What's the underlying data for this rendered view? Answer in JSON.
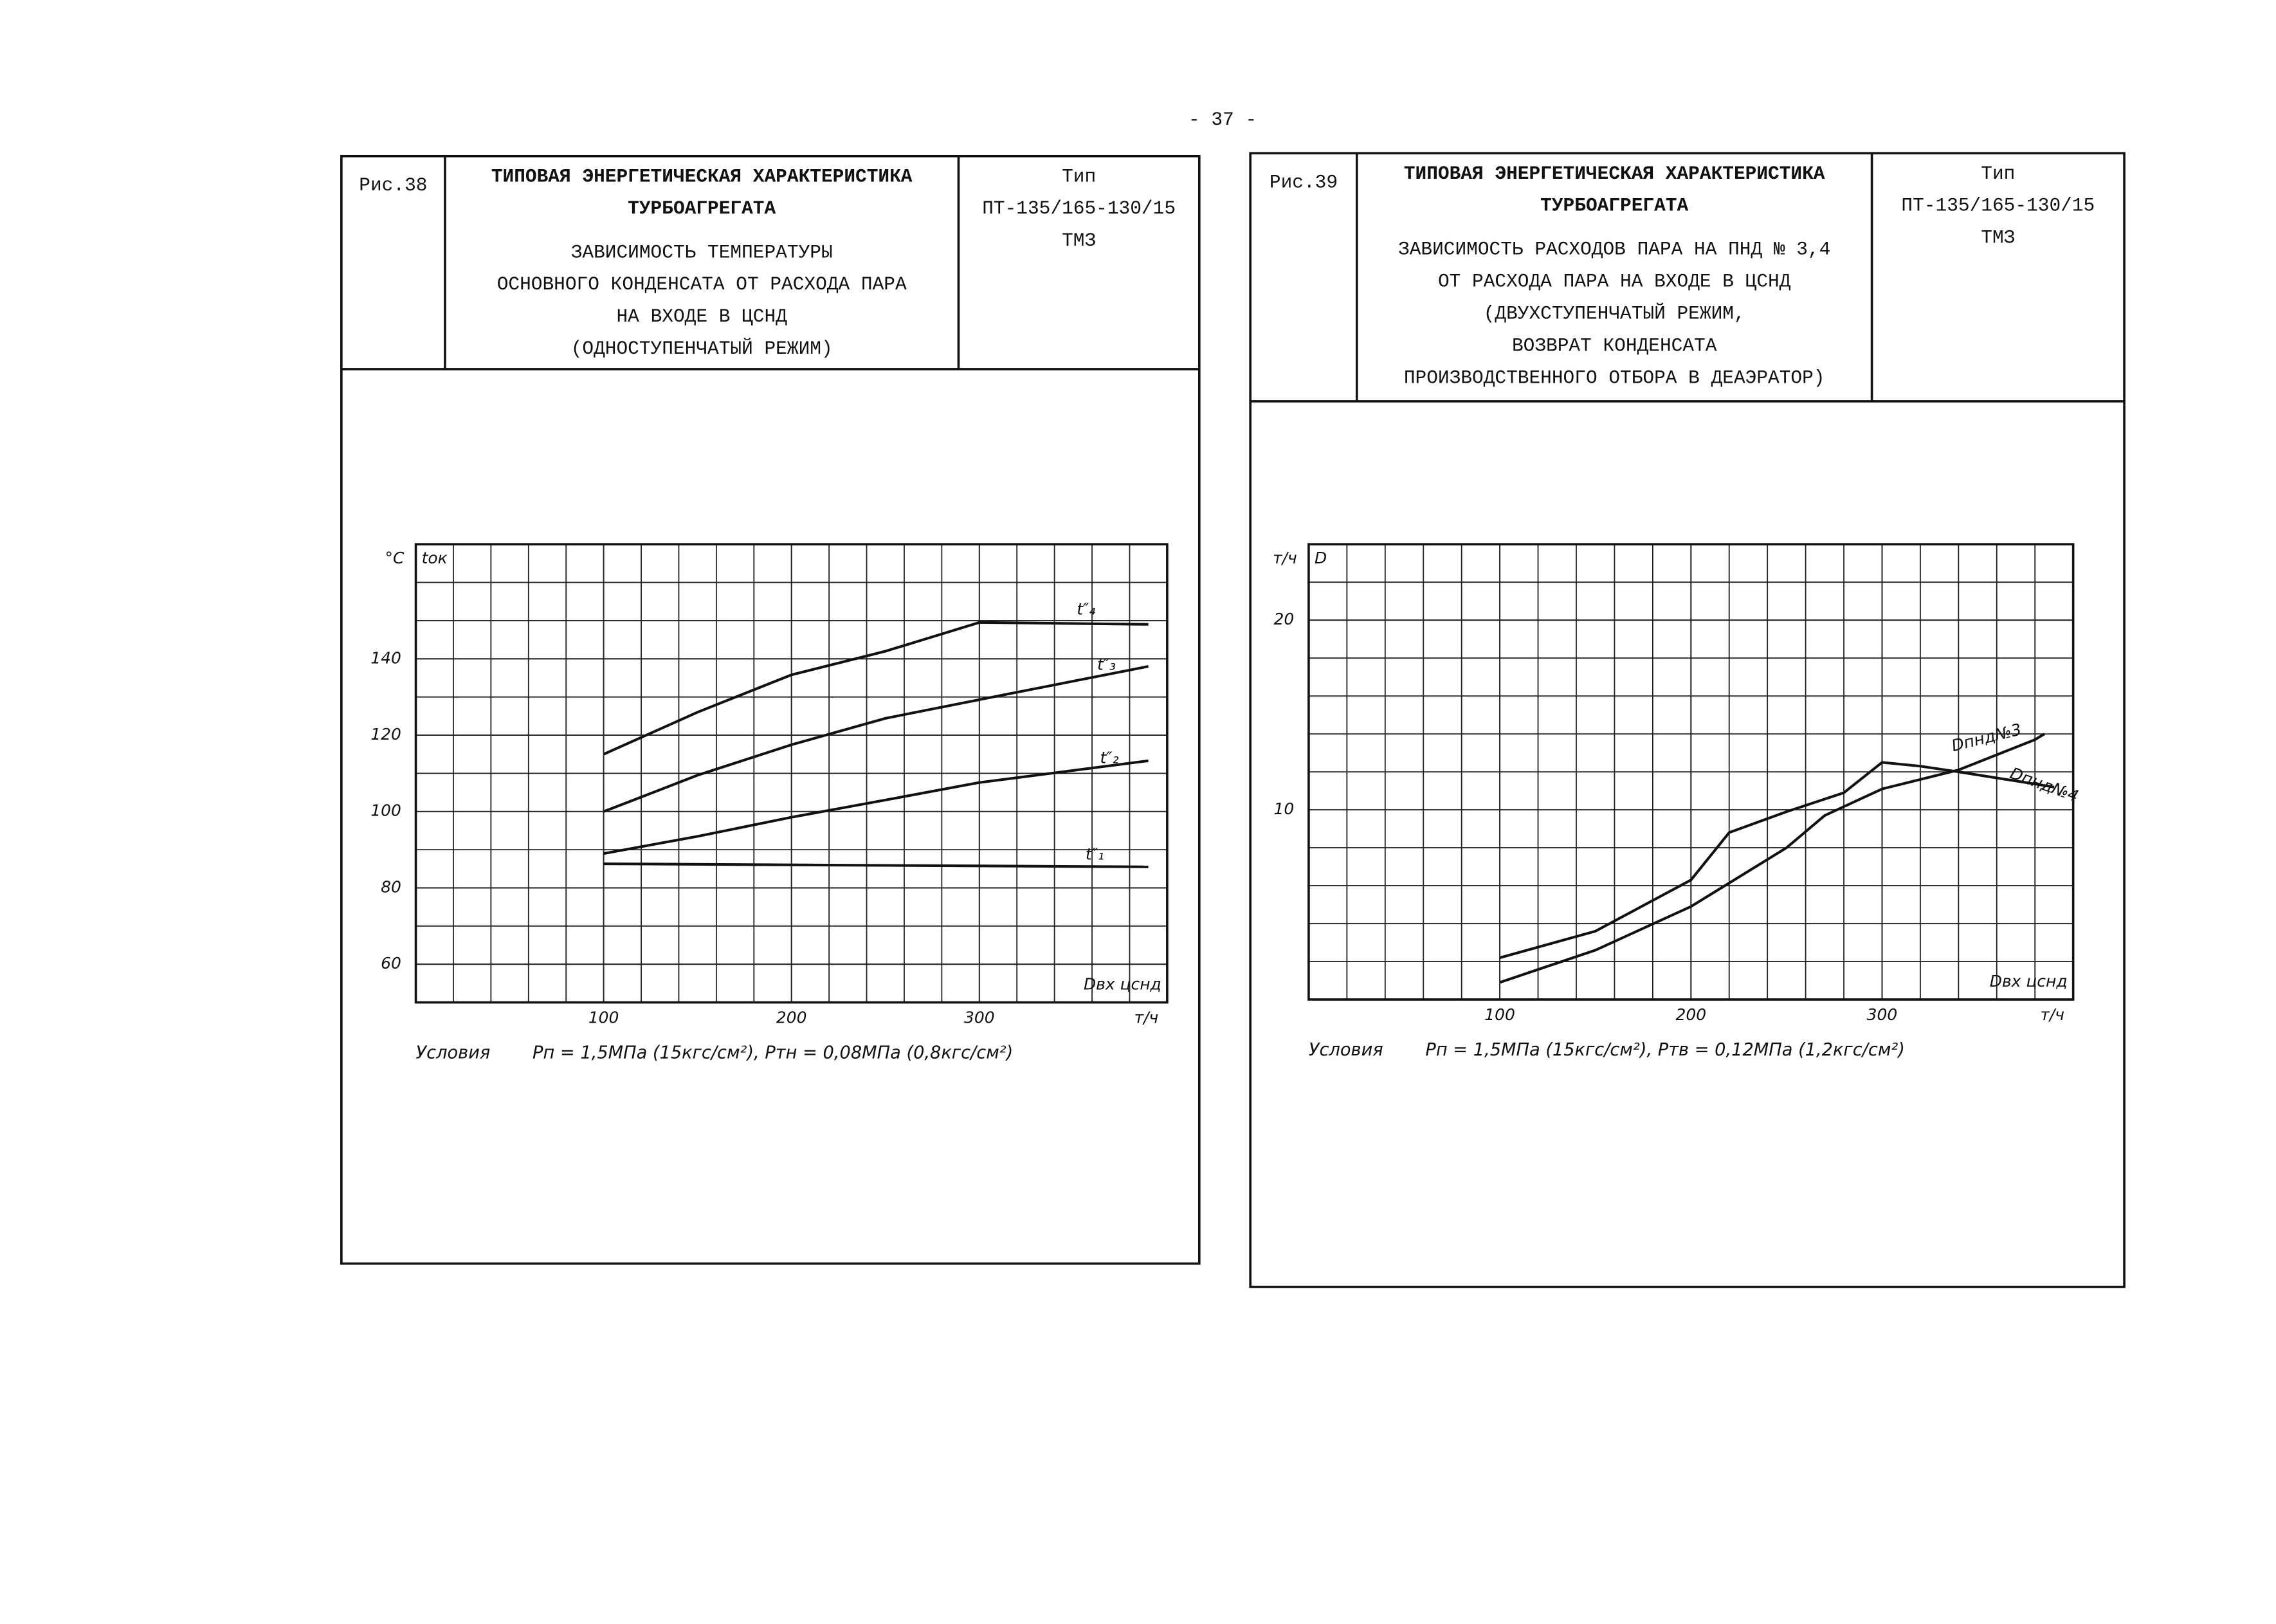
{
  "page_number": "- 37 -",
  "chart_data": [
    {
      "type": "line",
      "figure_label": "Рис.38",
      "title": [
        "ТИПОВАЯ ЭНЕРГЕТИЧЕСКАЯ ХАРАКТЕРИСТИКА",
        "ТУРБОАГРЕГАТА"
      ],
      "subtitle": [
        "ЗАВИСИМОСТЬ ТЕМПЕРАТУРЫ",
        "ОСНОВНОГО КОНДЕНСАТА ОТ РАСХОДА ПАРА",
        "НА ВХОДЕ В ЦСНД",
        "(ОДНОСТУПЕНЧАТЫЙ РЕЖИМ)"
      ],
      "type_header": [
        "Тип",
        "ПТ-135/165-130/15",
        "ТМЗ"
      ],
      "y_unit": "°С",
      "y_label": "tок",
      "x_label": "Dвх цснд",
      "x_unit": "т/ч",
      "xlim": [
        0,
        400
      ],
      "xticks": [
        100,
        200,
        300
      ],
      "ylim": [
        50,
        170
      ],
      "yticks": [
        60,
        80,
        100,
        120,
        140
      ],
      "grid": true,
      "series": [
        {
          "name": "t″₄",
          "color": "#111",
          "x": [
            100,
            150,
            200,
            250,
            300,
            390
          ],
          "values": [
            115,
            126,
            135.8,
            142,
            149.5,
            149
          ]
        },
        {
          "name": "t″₃",
          "color": "#111",
          "x": [
            100,
            150,
            200,
            250,
            300,
            390
          ],
          "values": [
            100,
            109.5,
            117.5,
            124.4,
            129.3,
            138
          ]
        },
        {
          "name": "t″₂",
          "color": "#111",
          "x": [
            100,
            150,
            200,
            250,
            300,
            390
          ],
          "values": [
            89,
            93.5,
            98.5,
            103,
            107.6,
            113.3
          ]
        },
        {
          "name": "t″₁",
          "color": "#111",
          "x": [
            100,
            390
          ],
          "values": [
            86.3,
            85.5
          ]
        }
      ],
      "conditions_label": "Условия",
      "conditions": "Pп = 1,5МПа (15кгс/см²),  Pтн = 0,08МПа (0,8кгс/см²)"
    },
    {
      "type": "line",
      "figure_label": "Рис.39",
      "title": [
        "ТИПОВАЯ ЭНЕРГЕТИЧЕСКАЯ ХАРАКТЕРИСТИКА",
        "ТУРБОАГРЕГАТА"
      ],
      "subtitle": [
        "ЗАВИСИМОСТЬ РАСХОДОВ ПАРА НА ПНД № 3,4",
        "ОТ РАСХОДА ПАРА НА ВХОДЕ В ЦСНД",
        "(ДВУХСТУПЕНЧАТЫЙ РЕЖИМ,",
        "ВОЗВРАТ КОНДЕНСАТА",
        "ПРОИЗВОДСТВЕННОГО ОТБОРА В ДЕАЭРАТОР)"
      ],
      "type_header": [
        "Тип",
        "ПТ-135/165-130/15",
        "ТМЗ"
      ],
      "y_unit": "т/ч",
      "y_label": "D",
      "x_label": "Dвх цснд",
      "x_unit": "т/ч",
      "xlim": [
        0,
        400
      ],
      "xticks": [
        100,
        200,
        300
      ],
      "ylim": [
        0,
        24
      ],
      "yticks": [
        10,
        20
      ],
      "grid": true,
      "series": [
        {
          "name": "Dпнд№3",
          "color": "#111",
          "x": [
            100,
            150,
            200,
            250,
            270,
            300,
            340,
            380,
            385
          ],
          "values": [
            0.9,
            2.6,
            4.9,
            8.0,
            9.7,
            11.1,
            12.1,
            13.7,
            14.0
          ]
        },
        {
          "name": "Dпнд№4",
          "color": "#111",
          "x": [
            100,
            150,
            200,
            220,
            250,
            280,
            300,
            320,
            340,
            390
          ],
          "values": [
            2.2,
            3.6,
            6.3,
            8.8,
            9.9,
            10.9,
            12.5,
            12.3,
            12.0,
            11.2
          ]
        }
      ],
      "conditions_label": "Условия",
      "conditions": "Pп = 1,5МПа (15кгс/см²),  Pтв = 0,12МПа (1,2кгс/см²)"
    }
  ]
}
